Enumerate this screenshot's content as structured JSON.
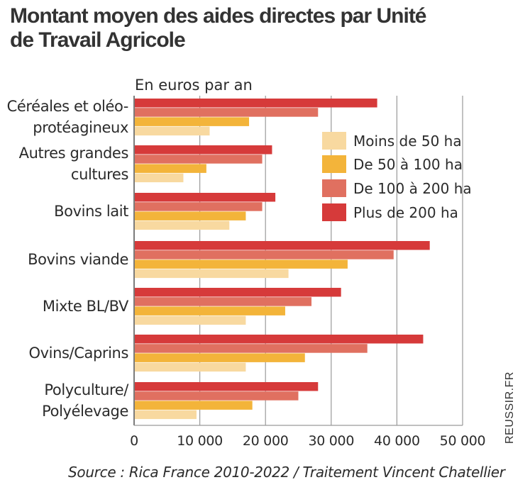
{
  "header": {
    "title_line1": "Montant moyen des aides directes par Unité",
    "title_line2": "de Travail Agricole"
  },
  "footer": {
    "source": "Source : Rica France 2010-2022 / Traitement Vincent Chatellier",
    "credit": "REUSSIR.FR"
  },
  "chart_data": {
    "type": "bar",
    "orientation": "horizontal",
    "title": "Montant moyen des aides directes par Unité de Travail Agricole",
    "unit_label": "En euros par an",
    "xlim": [
      0,
      50000
    ],
    "x_ticks": [
      0,
      10000,
      20000,
      30000,
      40000,
      50000
    ],
    "x_tick_labels": [
      "0",
      "10 000",
      "20 000",
      "30 000",
      "40 000",
      "50 000"
    ],
    "grid": true,
    "legend_position": "top-right",
    "categories": [
      [
        "Céréales et oléo-",
        "protéagineux"
      ],
      [
        "Autres grandes",
        "cultures"
      ],
      [
        "Bovins lait"
      ],
      [
        "Bovins viande"
      ],
      [
        "Mixte BL/BV"
      ],
      [
        "Ovins/Caprins"
      ],
      [
        "Polyculture/",
        "Polyélevage"
      ]
    ],
    "series": [
      {
        "name": "Plus de 200 ha",
        "color": "#d63a3a",
        "values": [
          37000,
          21000,
          21500,
          45000,
          31500,
          44000,
          28000
        ]
      },
      {
        "name": "De 100 à 200 ha",
        "color": "#e07060",
        "values": [
          28000,
          19500,
          19500,
          39500,
          27000,
          35500,
          25000
        ]
      },
      {
        "name": "De 50 à 100 ha",
        "color": "#f3b43a",
        "values": [
          17500,
          11000,
          17000,
          32500,
          23000,
          26000,
          18000
        ]
      },
      {
        "name": "Moins de 50 ha",
        "color": "#f8d9a0",
        "values": [
          11500,
          7500,
          14500,
          23500,
          17000,
          17000,
          9500
        ]
      }
    ],
    "legend_order": [
      "Moins de 50 ha",
      "De 50 à 100 ha",
      "De 100 à 200 ha",
      "Plus de 200 ha"
    ]
  }
}
